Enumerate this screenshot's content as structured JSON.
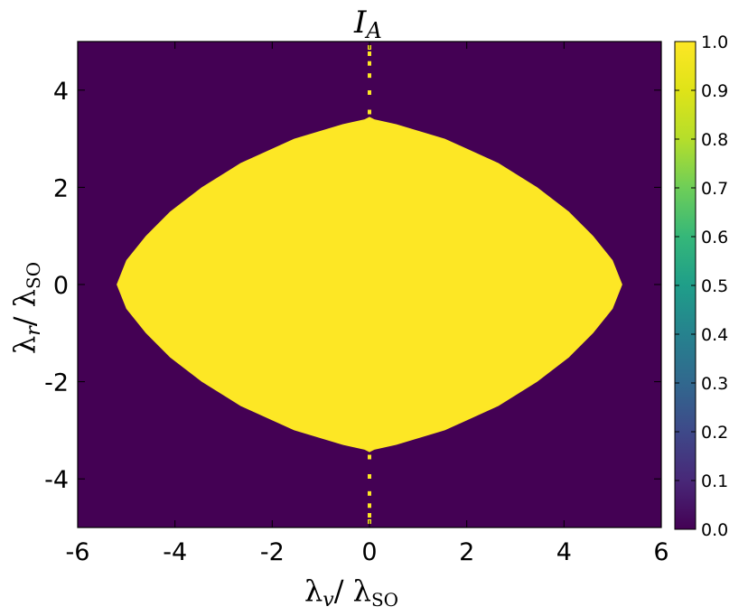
{
  "chart_data": {
    "type": "heatmap",
    "title": "I_A",
    "title_parts": {
      "main": "I",
      "sub": "A"
    },
    "xlabel_parts": {
      "lam": "λ",
      "sub_italic": "v",
      "sep": "/ ",
      "lam2": "λ",
      "sub2": "SO"
    },
    "ylabel_parts": {
      "lam": "λ",
      "sub_italic": "r",
      "sep": "/ ",
      "lam2": "λ",
      "sub2": "SO"
    },
    "xlim": [
      -6,
      6
    ],
    "ylim": [
      -5,
      5
    ],
    "x_ticks": [
      -6,
      -4,
      -2,
      0,
      2,
      4,
      6
    ],
    "x_tick_labels": [
      "-6",
      "-4",
      "-2",
      "0",
      "2",
      "4",
      "6"
    ],
    "y_ticks": [
      -4,
      -2,
      0,
      2,
      4
    ],
    "y_tick_labels": [
      "-4",
      "-2",
      "0",
      "2",
      "4"
    ],
    "colorbar": {
      "range": [
        0.0,
        1.0
      ],
      "ticks": [
        0.0,
        0.1,
        0.2,
        0.3,
        0.4,
        0.5,
        0.6,
        0.7,
        0.8,
        0.9,
        1.0
      ],
      "tick_labels": [
        "0.0",
        "0.1",
        "0.2",
        "0.3",
        "0.4",
        "0.5",
        "0.6",
        "0.7",
        "0.8",
        "0.9",
        "1.0"
      ],
      "colormap": "viridis"
    },
    "low_value": 0.0,
    "high_value": 1.0,
    "region_value_1_boundary": {
      "description_of_shape": "lens shaped region where value = 1, symmetric about both axes",
      "half_width_at_y": [
        [
          0.0,
          5.2
        ],
        [
          0.5,
          5.0
        ],
        [
          1.0,
          4.6
        ],
        [
          1.5,
          4.1
        ],
        [
          2.0,
          3.45
        ],
        [
          2.5,
          2.65
        ],
        [
          3.0,
          1.55
        ],
        [
          3.3,
          0.55
        ],
        [
          3.4,
          0.1
        ]
      ]
    },
    "spine_points_y": [
      3.55,
      3.95,
      4.3,
      4.55,
      4.75,
      4.88,
      -3.55,
      -3.95,
      -4.3,
      -4.55,
      -4.75,
      -4.88
    ],
    "colors": {
      "low": "#440154",
      "high": "#fde725"
    }
  }
}
